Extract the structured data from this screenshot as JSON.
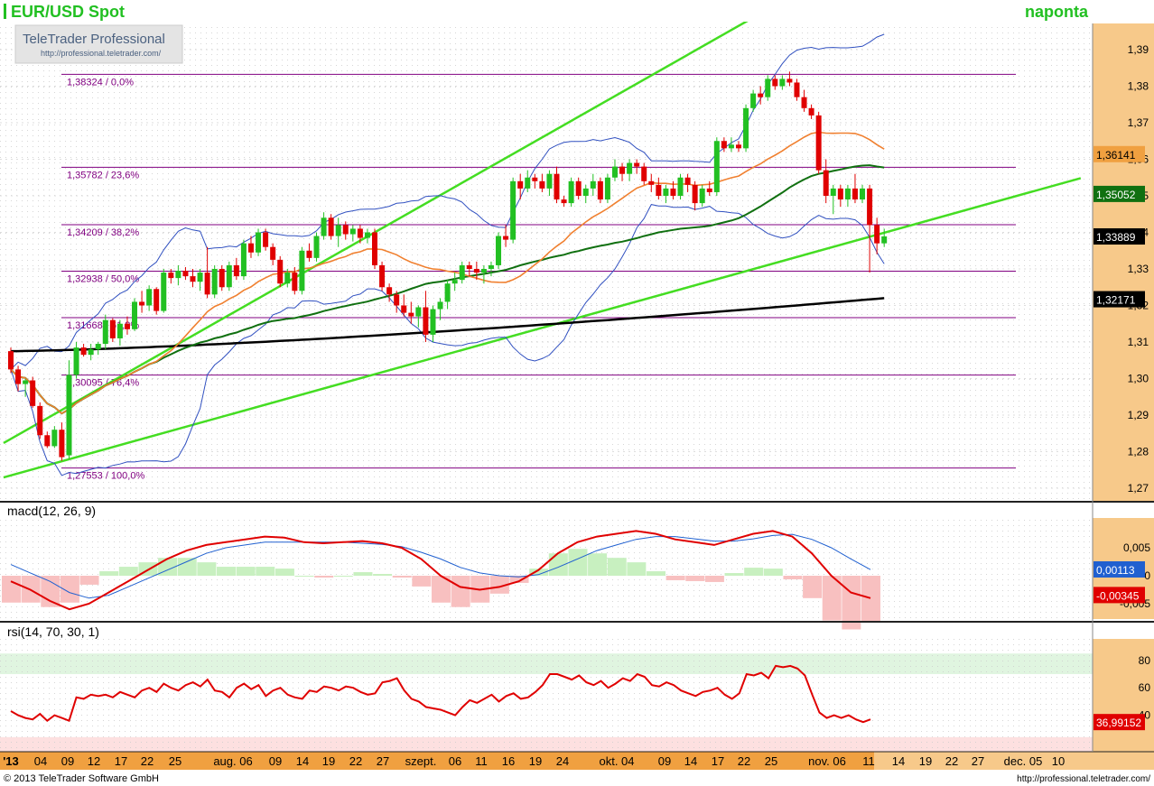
{
  "header": {
    "title": "EUR/USD Spot",
    "period": "naponta"
  },
  "watermark": {
    "brand": "TeleTrader Professional",
    "url": "http://professional.teletrader.com/"
  },
  "footer": {
    "copyright": "© 2013 TeleTrader Software GmbH",
    "url": "http://professional.teletrader.com/"
  },
  "colors": {
    "axis_bg": "#f7c98a",
    "axis_strip": "#f0a040",
    "bull": "#22c022",
    "bear": "#e00000",
    "channel": "#44dd22",
    "fib": "#800080",
    "ma_short": "#f08030",
    "ma_mid": "#107010",
    "ma_long": "#000000",
    "bollinger": "#3050c0",
    "macd_line": "#e00000",
    "signal_line": "#2060d0",
    "rsi_line": "#e00000"
  },
  "chart_data": [
    {
      "type": "candlestick",
      "title": "EUR/USD Spot",
      "ylim": [
        1.265,
        1.4
      ],
      "yticks": [
        "1,27",
        "1,28",
        "1,29",
        "1,30",
        "1,31",
        "1,32",
        "1,33",
        "1,34",
        "1,35",
        "1,36",
        "1,37",
        "1,38",
        "1,39"
      ],
      "xticks": [
        "'13",
        "04",
        "09",
        "12",
        "17",
        "22",
        "25",
        "aug. 06",
        "09",
        "14",
        "19",
        "22",
        "27",
        "szept.",
        "06",
        "11",
        "16",
        "19",
        "24",
        "okt. 04",
        "09",
        "14",
        "17",
        "22",
        "25",
        "nov. 06",
        "11",
        "14",
        "19",
        "22",
        "27",
        "dec. 05",
        "10"
      ],
      "fib_levels": [
        {
          "value": 1.38324,
          "label": "1,38324 / 0,0%"
        },
        {
          "value": 1.35782,
          "label": "1,35782 / 23,6%"
        },
        {
          "value": 1.34209,
          "label": "1,34209 / 38,2%"
        },
        {
          "value": 1.32938,
          "label": "1,32938 / 50,0%"
        },
        {
          "value": 1.31668,
          "label": "1,31668 / 61,8%"
        },
        {
          "value": 1.30095,
          "label": "1,30095 / 76,4%"
        },
        {
          "value": 1.27553,
          "label": "1,27553 / 100,0%"
        }
      ],
      "price_markers": [
        {
          "value": 1.36141,
          "label": "1,36141",
          "style": "orange"
        },
        {
          "value": 1.35052,
          "label": "1,35052",
          "style": "green"
        },
        {
          "value": 1.33889,
          "label": "1,33889",
          "style": "black"
        },
        {
          "value": 1.32171,
          "label": "1,32171",
          "style": "black"
        }
      ],
      "channel_lines": [
        {
          "p1": [
            0,
            1.2735
          ],
          "p2": [
            150,
            1.3565
          ]
        },
        {
          "p1": [
            0,
            1.2835
          ],
          "p2": [
            100,
            1.3965
          ]
        }
      ],
      "candles": [
        [
          1.3075,
          1.3085,
          1.3015,
          1.3025
        ],
        [
          1.3025,
          1.3035,
          1.2965,
          1.2985
        ],
        [
          1.2985,
          1.3,
          1.295,
          1.2995
        ],
        [
          1.2995,
          1.3005,
          1.292,
          1.2925
        ],
        [
          1.2925,
          1.2935,
          1.2835,
          1.2845
        ],
        [
          1.2845,
          1.2855,
          1.281,
          1.2815
        ],
        [
          1.2815,
          1.287,
          1.281,
          1.286
        ],
        [
          1.286,
          1.288,
          1.2775,
          1.2785
        ],
        [
          1.279,
          1.305,
          1.278,
          1.301
        ],
        [
          1.301,
          1.31,
          1.3,
          1.3085
        ],
        [
          1.3085,
          1.3095,
          1.306,
          1.3065
        ],
        [
          1.3065,
          1.3095,
          1.305,
          1.308
        ],
        [
          1.308,
          1.31,
          1.3065,
          1.3095
        ],
        [
          1.3095,
          1.3175,
          1.308,
          1.316
        ],
        [
          1.316,
          1.3165,
          1.31,
          1.311
        ],
        [
          1.311,
          1.316,
          1.309,
          1.315
        ],
        [
          1.315,
          1.317,
          1.312,
          1.3135
        ],
        [
          1.3135,
          1.322,
          1.313,
          1.321
        ],
        [
          1.321,
          1.324,
          1.318,
          1.32
        ],
        [
          1.32,
          1.3255,
          1.3185,
          1.3245
        ],
        [
          1.3245,
          1.325,
          1.3175,
          1.3185
        ],
        [
          1.3185,
          1.33,
          1.318,
          1.329
        ],
        [
          1.329,
          1.33,
          1.326,
          1.3275
        ],
        [
          1.3275,
          1.331,
          1.3255,
          1.3295
        ],
        [
          1.3295,
          1.3305,
          1.327,
          1.328
        ],
        [
          1.328,
          1.33,
          1.325,
          1.3265
        ],
        [
          1.3265,
          1.33,
          1.324,
          1.329
        ],
        [
          1.329,
          1.336,
          1.322,
          1.323
        ],
        [
          1.323,
          1.331,
          1.322,
          1.33
        ],
        [
          1.33,
          1.331,
          1.324,
          1.325
        ],
        [
          1.325,
          1.332,
          1.324,
          1.331
        ],
        [
          1.331,
          1.333,
          1.327,
          1.328
        ],
        [
          1.328,
          1.338,
          1.327,
          1.337
        ],
        [
          1.337,
          1.339,
          1.333,
          1.3345
        ],
        [
          1.3345,
          1.341,
          1.3335,
          1.34
        ],
        [
          1.34,
          1.341,
          1.335,
          1.336
        ],
        [
          1.336,
          1.337,
          1.331,
          1.3325
        ],
        [
          1.3325,
          1.3335,
          1.325,
          1.326
        ],
        [
          1.326,
          1.33,
          1.325,
          1.329
        ],
        [
          1.329,
          1.3305,
          1.323,
          1.324
        ],
        [
          1.324,
          1.336,
          1.323,
          1.335
        ],
        [
          1.335,
          1.337,
          1.332,
          1.333
        ],
        [
          1.333,
          1.34,
          1.332,
          1.339
        ],
        [
          1.339,
          1.3455,
          1.338,
          1.344
        ],
        [
          1.344,
          1.345,
          1.338,
          1.339
        ],
        [
          1.339,
          1.344,
          1.336,
          1.342
        ],
        [
          1.342,
          1.343,
          1.338,
          1.3395
        ],
        [
          1.3395,
          1.342,
          1.3375,
          1.341
        ],
        [
          1.341,
          1.342,
          1.337,
          1.3385
        ],
        [
          1.3385,
          1.341,
          1.337,
          1.34
        ],
        [
          1.34,
          1.341,
          1.33,
          1.331
        ],
        [
          1.331,
          1.332,
          1.324,
          1.325
        ],
        [
          1.325,
          1.326,
          1.321,
          1.323
        ],
        [
          1.323,
          1.324,
          1.318,
          1.32
        ],
        [
          1.32,
          1.323,
          1.317,
          1.318
        ],
        [
          1.318,
          1.321,
          1.315,
          1.317
        ],
        [
          1.317,
          1.32,
          1.314,
          1.3195
        ],
        [
          1.3195,
          1.324,
          1.31,
          1.312
        ],
        [
          1.312,
          1.32,
          1.31,
          1.319
        ],
        [
          1.319,
          1.322,
          1.316,
          1.321
        ],
        [
          1.321,
          1.327,
          1.319,
          1.326
        ],
        [
          1.326,
          1.329,
          1.324,
          1.327
        ],
        [
          1.327,
          1.332,
          1.326,
          1.331
        ],
        [
          1.331,
          1.332,
          1.328,
          1.33
        ],
        [
          1.33,
          1.332,
          1.327,
          1.329
        ],
        [
          1.329,
          1.331,
          1.326,
          1.33
        ],
        [
          1.33,
          1.332,
          1.328,
          1.331
        ],
        [
          1.331,
          1.34,
          1.33,
          1.339
        ],
        [
          1.339,
          1.342,
          1.336,
          1.338
        ],
        [
          1.338,
          1.355,
          1.337,
          1.354
        ],
        [
          1.354,
          1.356,
          1.349,
          1.352
        ],
        [
          1.352,
          1.357,
          1.351,
          1.355
        ],
        [
          1.355,
          1.356,
          1.352,
          1.354
        ],
        [
          1.354,
          1.356,
          1.351,
          1.352
        ],
        [
          1.352,
          1.357,
          1.35,
          1.356
        ],
        [
          1.356,
          1.358,
          1.348,
          1.349
        ],
        [
          1.349,
          1.35,
          1.347,
          1.348
        ],
        [
          1.348,
          1.355,
          1.347,
          1.354
        ],
        [
          1.354,
          1.355,
          1.349,
          1.35
        ],
        [
          1.35,
          1.353,
          1.348,
          1.352
        ],
        [
          1.352,
          1.356,
          1.35,
          1.354
        ],
        [
          1.354,
          1.355,
          1.348,
          1.349
        ],
        [
          1.349,
          1.356,
          1.348,
          1.355
        ],
        [
          1.355,
          1.36,
          1.354,
          1.358
        ],
        [
          1.358,
          1.359,
          1.354,
          1.356
        ],
        [
          1.356,
          1.36,
          1.354,
          1.359
        ],
        [
          1.359,
          1.36,
          1.356,
          1.358
        ],
        [
          1.358,
          1.359,
          1.353,
          1.354
        ],
        [
          1.354,
          1.356,
          1.351,
          1.353
        ],
        [
          1.353,
          1.355,
          1.349,
          1.35
        ],
        [
          1.35,
          1.353,
          1.348,
          1.352
        ],
        [
          1.352,
          1.354,
          1.349,
          1.35
        ],
        [
          1.35,
          1.356,
          1.349,
          1.355
        ],
        [
          1.355,
          1.356,
          1.351,
          1.353
        ],
        [
          1.353,
          1.354,
          1.346,
          1.348
        ],
        [
          1.348,
          1.353,
          1.347,
          1.352
        ],
        [
          1.352,
          1.354,
          1.35,
          1.351
        ],
        [
          1.351,
          1.366,
          1.35,
          1.365
        ],
        [
          1.365,
          1.366,
          1.362,
          1.363
        ],
        [
          1.363,
          1.366,
          1.362,
          1.364
        ],
        [
          1.364,
          1.365,
          1.362,
          1.363
        ],
        [
          1.363,
          1.375,
          1.362,
          1.374
        ],
        [
          1.374,
          1.379,
          1.373,
          1.378
        ],
        [
          1.378,
          1.38,
          1.375,
          1.377
        ],
        [
          1.377,
          1.383,
          1.376,
          1.382
        ],
        [
          1.382,
          1.383,
          1.379,
          1.38
        ],
        [
          1.38,
          1.383,
          1.379,
          1.382
        ],
        [
          1.382,
          1.384,
          1.38,
          1.381
        ],
        [
          1.381,
          1.382,
          1.376,
          1.377
        ],
        [
          1.377,
          1.379,
          1.373,
          1.374
        ],
        [
          1.374,
          1.375,
          1.371,
          1.372
        ],
        [
          1.372,
          1.373,
          1.356,
          1.357
        ],
        [
          1.357,
          1.36,
          1.348,
          1.35
        ],
        [
          1.35,
          1.353,
          1.345,
          1.352
        ],
        [
          1.352,
          1.353,
          1.347,
          1.349
        ],
        [
          1.349,
          1.353,
          1.347,
          1.352
        ],
        [
          1.352,
          1.356,
          1.348,
          1.349
        ],
        [
          1.349,
          1.353,
          1.348,
          1.352
        ],
        [
          1.352,
          1.353,
          1.329,
          1.342
        ],
        [
          1.342,
          1.344,
          1.334,
          1.337
        ],
        [
          1.337,
          1.341,
          1.336,
          1.3389
        ]
      ]
    },
    {
      "type": "line",
      "title": "macd(12, 26, 9)",
      "yticks": [
        "0,005",
        "0",
        "-0,005"
      ],
      "ylim": [
        -0.0075,
        0.0075
      ],
      "markers": [
        {
          "value": 0.00113,
          "label": "0,00113",
          "style": "blue"
        },
        {
          "value": -0.00345,
          "label": "-0,00345",
          "style": "red"
        }
      ],
      "series": [
        {
          "name": "macd",
          "values": [
            -0.001,
            -0.0025,
            -0.0045,
            -0.006,
            -0.005,
            -0.003,
            -0.001,
            0.001,
            0.003,
            0.0045,
            0.0055,
            0.006,
            0.0065,
            0.007,
            0.0068,
            0.006,
            0.0058,
            0.006,
            0.0062,
            0.0058,
            0.005,
            0.003,
            0.0,
            -0.002,
            -0.0025,
            -0.002,
            -0.001,
            0.001,
            0.004,
            0.006,
            0.007,
            0.0075,
            0.008,
            0.0075,
            0.0065,
            0.006,
            0.0055,
            0.0065,
            0.0075,
            0.008,
            0.007,
            0.004,
            0.0,
            -0.003,
            -0.004
          ]
        },
        {
          "name": "signal",
          "values": [
            0.002,
            0.0005,
            -0.001,
            -0.003,
            -0.004,
            -0.0035,
            -0.002,
            -0.0005,
            0.001,
            0.0025,
            0.004,
            0.005,
            0.0055,
            0.006,
            0.006,
            0.006,
            0.006,
            0.006,
            0.0058,
            0.0056,
            0.0052,
            0.0042,
            0.003,
            0.0015,
            0.0005,
            0.0,
            -0.0002,
            0.0002,
            0.0015,
            0.003,
            0.0045,
            0.0055,
            0.0065,
            0.007,
            0.007,
            0.0066,
            0.0062,
            0.0062,
            0.0066,
            0.0072,
            0.0074,
            0.0065,
            0.005,
            0.003,
            0.0011
          ]
        }
      ]
    },
    {
      "type": "line",
      "title": "rsi(14, 70, 30, 1)",
      "yticks": [
        "80",
        "60",
        "40"
      ],
      "ylim": [
        25,
        85
      ],
      "bands": {
        "upper": 70,
        "lower": 30
      },
      "markers": [
        {
          "value": 36.99152,
          "label": "36,99152",
          "style": "red"
        }
      ],
      "series": [
        {
          "name": "rsi",
          "values": [
            43,
            40,
            38,
            37,
            41,
            36,
            40,
            38,
            36,
            53,
            52,
            55,
            54,
            55,
            53,
            57,
            55,
            53,
            58,
            60,
            57,
            63,
            60,
            58,
            62,
            64,
            61,
            66,
            58,
            57,
            53,
            60,
            63,
            59,
            62,
            54,
            58,
            60,
            55,
            53,
            52,
            58,
            57,
            61,
            60,
            58,
            61,
            60,
            57,
            55,
            56,
            64,
            65,
            67,
            58,
            52,
            50,
            46,
            45,
            44,
            42,
            40,
            46,
            51,
            49,
            52,
            55,
            50,
            54,
            56,
            52,
            53,
            57,
            62,
            70,
            70,
            68,
            66,
            69,
            64,
            62,
            65,
            60,
            63,
            67,
            65,
            70,
            68,
            62,
            61,
            64,
            62,
            58,
            56,
            54,
            57,
            58,
            60,
            55,
            52,
            56,
            70,
            69,
            71,
            67,
            76,
            75,
            76,
            74,
            69,
            55,
            42,
            38,
            40,
            38,
            40,
            37,
            35,
            37
          ]
        }
      ]
    }
  ]
}
